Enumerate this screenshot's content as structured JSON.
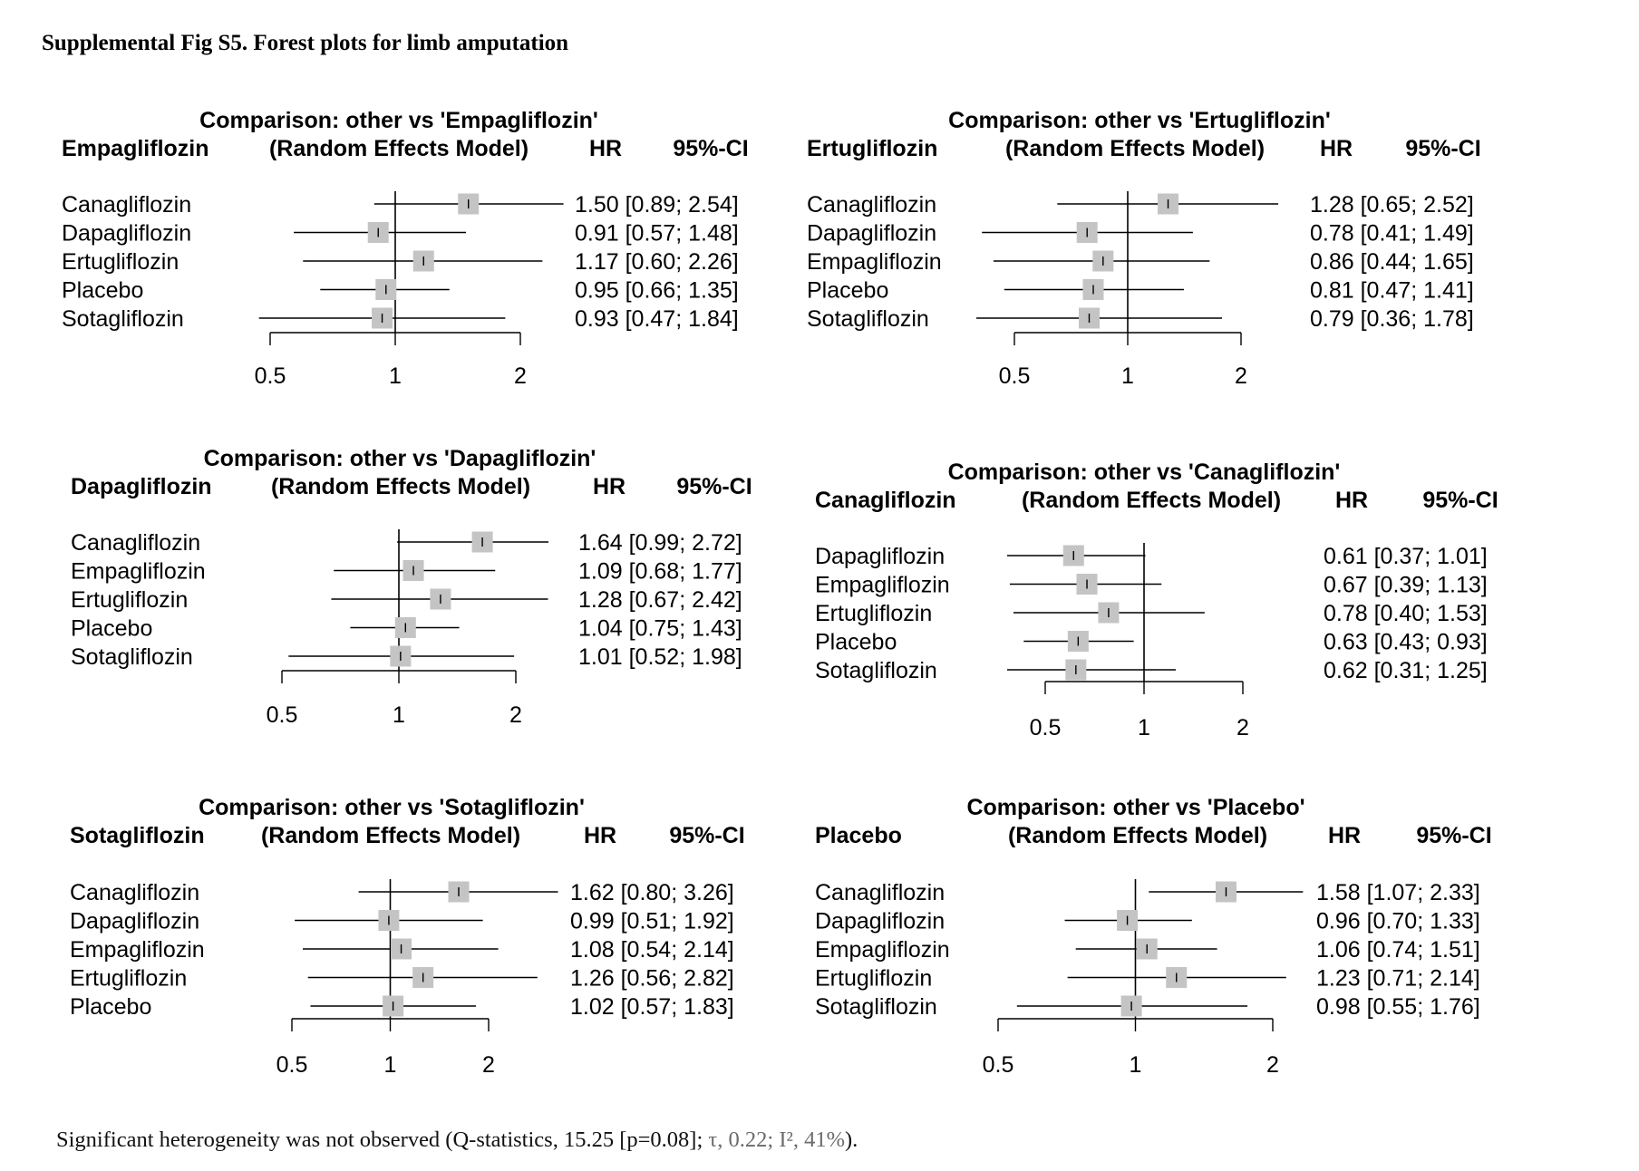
{
  "title": "Supplemental Fig S5. Forest plots for limb amputation",
  "footnote": {
    "lead": "Significant heterogeneity was not observed (Q-statistics, 15.25 [p=0.08];",
    "tau": "τ, 0.22;",
    "i2": "I²",
    "i2_value": ", 41%",
    "close": ")."
  },
  "colors": {
    "box": "#c4c4c4",
    "line": "#000000",
    "text": "#000000"
  },
  "chart_data": [
    {
      "type": "forest",
      "title": "Comparison: other vs 'Empagliflozin'",
      "reference": "Empagliflozin",
      "model": "(Random Effects Model)",
      "col_hr": "HR",
      "col_ci": "95%-CI",
      "scale": "log",
      "ticks": [
        "0.5",
        "1",
        "2"
      ],
      "rows": [
        {
          "label": "Canagliflozin",
          "hr": 1.5,
          "lo": 0.89,
          "hi": 2.54,
          "text": "1.50 [0.89; 2.54]"
        },
        {
          "label": "Dapagliflozin",
          "hr": 0.91,
          "lo": 0.57,
          "hi": 1.48,
          "text": "0.91 [0.57; 1.48]"
        },
        {
          "label": "Ertugliflozin",
          "hr": 1.17,
          "lo": 0.6,
          "hi": 2.26,
          "text": "1.17 [0.60; 2.26]"
        },
        {
          "label": "Placebo",
          "hr": 0.95,
          "lo": 0.66,
          "hi": 1.35,
          "text": "0.95 [0.66; 1.35]"
        },
        {
          "label": "Sotagliflozin",
          "hr": 0.93,
          "lo": 0.47,
          "hi": 1.84,
          "text": "0.93 [0.47; 1.84]"
        }
      ]
    },
    {
      "type": "forest",
      "title": "Comparison: other vs 'Ertugliflozin'",
      "reference": "Ertugliflozin",
      "model": "(Random Effects Model)",
      "col_hr": "HR",
      "col_ci": "95%-CI",
      "scale": "log",
      "ticks": [
        "0.5",
        "1",
        "2"
      ],
      "rows": [
        {
          "label": "Canagliflozin",
          "hr": 1.28,
          "lo": 0.65,
          "hi": 2.52,
          "text": "1.28 [0.65; 2.52]"
        },
        {
          "label": "Dapagliflozin",
          "hr": 0.78,
          "lo": 0.41,
          "hi": 1.49,
          "text": "0.78 [0.41; 1.49]"
        },
        {
          "label": "Empagliflozin",
          "hr": 0.86,
          "lo": 0.44,
          "hi": 1.65,
          "text": "0.86 [0.44; 1.65]"
        },
        {
          "label": "Placebo",
          "hr": 0.81,
          "lo": 0.47,
          "hi": 1.41,
          "text": "0.81 [0.47; 1.41]"
        },
        {
          "label": "Sotagliflozin",
          "hr": 0.79,
          "lo": 0.36,
          "hi": 1.78,
          "text": "0.79 [0.36; 1.78]"
        }
      ]
    },
    {
      "type": "forest",
      "title": "Comparison: other vs 'Dapagliflozin'",
      "reference": "Dapagliflozin",
      "model": "(Random Effects Model)",
      "col_hr": "HR",
      "col_ci": "95%-CI",
      "scale": "log",
      "ticks": [
        "0.5",
        "1",
        "2"
      ],
      "rows": [
        {
          "label": "Canagliflozin",
          "hr": 1.64,
          "lo": 0.99,
          "hi": 2.72,
          "text": "1.64 [0.99; 2.72]"
        },
        {
          "label": "Empagliflozin",
          "hr": 1.09,
          "lo": 0.68,
          "hi": 1.77,
          "text": "1.09 [0.68; 1.77]"
        },
        {
          "label": "Ertugliflozin",
          "hr": 1.28,
          "lo": 0.67,
          "hi": 2.42,
          "text": "1.28 [0.67; 2.42]"
        },
        {
          "label": "Placebo",
          "hr": 1.04,
          "lo": 0.75,
          "hi": 1.43,
          "text": "1.04 [0.75; 1.43]"
        },
        {
          "label": "Sotagliflozin",
          "hr": 1.01,
          "lo": 0.52,
          "hi": 1.98,
          "text": "1.01 [0.52; 1.98]"
        }
      ]
    },
    {
      "type": "forest",
      "title": "Comparison: other vs 'Canagliflozin'",
      "reference": "Canagliflozin",
      "model": "(Random Effects Model)",
      "col_hr": "HR",
      "col_ci": "95%-CI",
      "scale": "log",
      "ticks": [
        "0.5",
        "1",
        "2"
      ],
      "rows": [
        {
          "label": "Dapagliflozin",
          "hr": 0.61,
          "lo": 0.37,
          "hi": 1.01,
          "text": "0.61 [0.37; 1.01]"
        },
        {
          "label": "Empagliflozin",
          "hr": 0.67,
          "lo": 0.39,
          "hi": 1.13,
          "text": "0.67 [0.39; 1.13]"
        },
        {
          "label": "Ertugliflozin",
          "hr": 0.78,
          "lo": 0.4,
          "hi": 1.53,
          "text": "0.78 [0.40; 1.53]"
        },
        {
          "label": "Placebo",
          "hr": 0.63,
          "lo": 0.43,
          "hi": 0.93,
          "text": "0.63 [0.43; 0.93]"
        },
        {
          "label": "Sotagliflozin",
          "hr": 0.62,
          "lo": 0.31,
          "hi": 1.25,
          "text": "0.62 [0.31; 1.25]"
        }
      ]
    },
    {
      "type": "forest",
      "title": "Comparison: other vs 'Sotagliflozin'",
      "reference": "Sotagliflozin",
      "model": "(Random Effects Model)",
      "col_hr": "HR",
      "col_ci": "95%-CI",
      "scale": "log",
      "ticks": [
        "0.5",
        "1",
        "2"
      ],
      "rows": [
        {
          "label": "Canagliflozin",
          "hr": 1.62,
          "lo": 0.8,
          "hi": 3.26,
          "text": "1.62 [0.80; 3.26]"
        },
        {
          "label": "Dapagliflozin",
          "hr": 0.99,
          "lo": 0.51,
          "hi": 1.92,
          "text": "0.99 [0.51; 1.92]"
        },
        {
          "label": "Empagliflozin",
          "hr": 1.08,
          "lo": 0.54,
          "hi": 2.14,
          "text": "1.08 [0.54; 2.14]"
        },
        {
          "label": "Ertugliflozin",
          "hr": 1.26,
          "lo": 0.56,
          "hi": 2.82,
          "text": "1.26 [0.56; 2.82]"
        },
        {
          "label": "Placebo",
          "hr": 1.02,
          "lo": 0.57,
          "hi": 1.83,
          "text": "1.02 [0.57; 1.83]"
        }
      ]
    },
    {
      "type": "forest",
      "title": "Comparison: other vs 'Placebo'",
      "reference": "Placebo",
      "model": "(Random Effects Model)",
      "col_hr": "HR",
      "col_ci": "95%-CI",
      "scale": "log",
      "ticks": [
        "0.5",
        "1",
        "2"
      ],
      "rows": [
        {
          "label": "Canagliflozin",
          "hr": 1.58,
          "lo": 1.07,
          "hi": 2.33,
          "text": "1.58 [1.07; 2.33]"
        },
        {
          "label": "Dapagliflozin",
          "hr": 0.96,
          "lo": 0.7,
          "hi": 1.33,
          "text": "0.96 [0.70; 1.33]"
        },
        {
          "label": "Empagliflozin",
          "hr": 1.06,
          "lo": 0.74,
          "hi": 1.51,
          "text": "1.06 [0.74; 1.51]"
        },
        {
          "label": "Ertugliflozin",
          "hr": 1.23,
          "lo": 0.71,
          "hi": 2.14,
          "text": "1.23 [0.71; 2.14]"
        },
        {
          "label": "Sotagliflozin",
          "hr": 0.98,
          "lo": 0.55,
          "hi": 1.76,
          "text": "0.98 [0.55; 1.76]"
        }
      ]
    }
  ]
}
